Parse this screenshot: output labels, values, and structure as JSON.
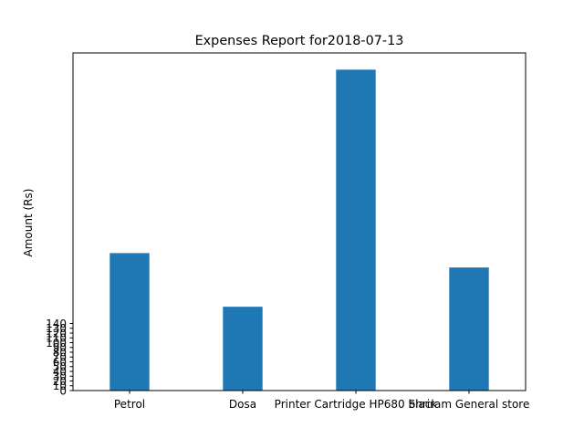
{
  "chart_data": {
    "type": "bar",
    "title": "Expenses Report for2018-07-13",
    "xlabel": "",
    "ylabel": "Amount (Rs)",
    "categories": [
      "Petrol",
      "Dosa",
      "Printer Cartridge HP680 black",
      "Shriram General store"
    ],
    "values": [
      287,
      175,
      670,
      257
    ],
    "yticks": [
      0,
      10,
      20,
      30,
      40,
      50,
      60,
      70,
      80,
      90,
      100,
      110,
      120,
      130,
      140
    ],
    "ylim": [
      0,
      705
    ],
    "grid": false,
    "legend": "none",
    "bar_color": "#1f77b4"
  }
}
